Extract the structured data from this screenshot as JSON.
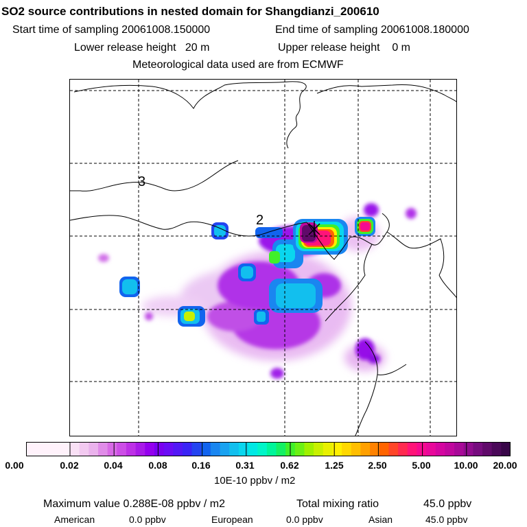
{
  "header": {
    "title": "SO2 source contributions in nested domain for Shangdianzi_200610",
    "start_label": "Start time of sampling 20061008.150000",
    "end_label": "End time of sampling 20061008.180000",
    "lower_label": "Lower release height   20 m",
    "upper_label": "Upper release height    0 m",
    "met_label": "Meteorological data used are from ECMWF"
  },
  "map": {
    "grid_labels": [
      "3",
      "2"
    ],
    "receptor_marker": "x-icon"
  },
  "colorbar": {
    "tick_labels": [
      "0.00",
      "0.02",
      "0.04",
      "0.08",
      "0.16",
      "0.31",
      "0.62",
      "1.25",
      "2.50",
      "5.00",
      "10.00",
      "20.00"
    ],
    "colors": [
      "#fff2fb",
      "#f9e0f5",
      "#f2c9f0",
      "#eab2ec",
      "#e08ce8",
      "#d86ae6",
      "#cc4ee6",
      "#bd31e6",
      "#a81ae8",
      "#9400ee",
      "#7a00f0",
      "#6a0cf5",
      "#5218f5",
      "#3a24f5",
      "#2444f0",
      "#1264ee",
      "#1a86f0",
      "#1aa2f0",
      "#12bfee",
      "#0ad6ee",
      "#00e8e4",
      "#00f5c8",
      "#00f59a",
      "#14f064",
      "#40f02a",
      "#6cf014",
      "#a0f000",
      "#c8f000",
      "#e8f000",
      "#fff000",
      "#ffd800",
      "#ffbe00",
      "#ffa000",
      "#ff8200",
      "#ff6400",
      "#ff4628",
      "#ff2a50",
      "#ff1478",
      "#f50a90",
      "#e8089a",
      "#d406a0",
      "#c0089e",
      "#a80a98",
      "#900c8e",
      "#760c7e",
      "#600a6a",
      "#4a0858",
      "#380648"
    ],
    "units": "10E-10 ppbv / m2"
  },
  "footer": {
    "max_label": "Maximum value  0.288E-08 ppbv / m2",
    "total_label": "Total mixing ratio",
    "total_value": "45.0 ppbv",
    "american_label": "American",
    "american_value": "0.0 ppbv",
    "european_label": "European",
    "european_value": "0.0 ppbv",
    "asian_label": "Asian",
    "asian_value": "45.0 ppbv"
  }
}
